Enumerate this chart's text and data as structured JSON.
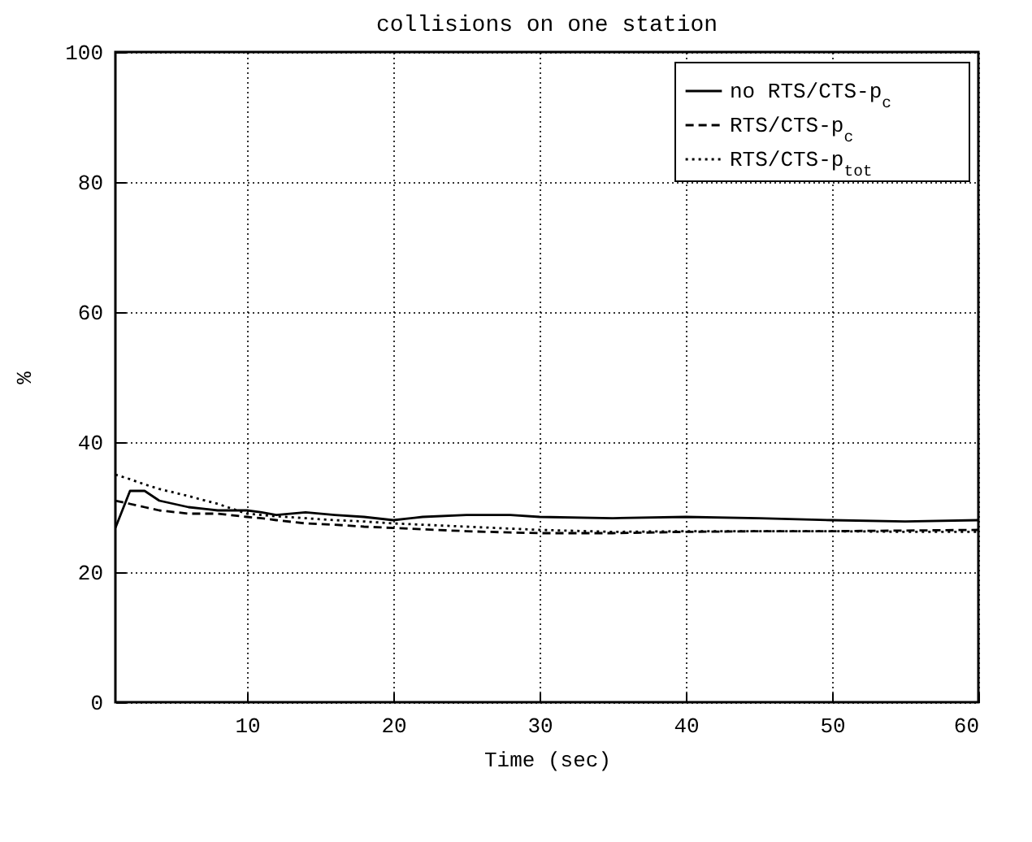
{
  "chart_data": {
    "type": "line",
    "title": "collisions on one station",
    "xlabel": "Time (sec)",
    "ylabel": "%",
    "xlim": [
      1,
      60
    ],
    "xticks": [
      10,
      20,
      30,
      40,
      50,
      60
    ],
    "ylim": [
      0,
      100
    ],
    "yticks": [
      0,
      20,
      40,
      60,
      80,
      100
    ],
    "grid": true,
    "legend": "top right",
    "marker": "none",
    "x": [
      1,
      2,
      3,
      4,
      6,
      8,
      10,
      11,
      12,
      14,
      16,
      18,
      20,
      22,
      25,
      28,
      30,
      35,
      40,
      45,
      50,
      55,
      60
    ],
    "series": [
      {
        "name": "no RTS/CTS-p$_{c}$",
        "color": "#000000",
        "line_style": "solid",
        "values": [
          26.8,
          32.5,
          32.5,
          31,
          30,
          29.5,
          29.5,
          29.2,
          28.8,
          29.2,
          28.8,
          28.5,
          28,
          28.5,
          28.8,
          28.8,
          28.5,
          28.3,
          28.5,
          28.3,
          28,
          27.8,
          28
        ]
      },
      {
        "name": "RTS/CTS-p$_{c}$",
        "color": "#000000",
        "line_style": "dashed",
        "values": [
          31,
          30.5,
          30,
          29.5,
          29,
          29,
          28.5,
          28.3,
          28,
          27.5,
          27.3,
          27,
          26.8,
          26.6,
          26.3,
          26.1,
          26,
          26,
          26.2,
          26.3,
          26.3,
          26.4,
          26.5
        ]
      },
      {
        "name": "RTS/CTS-p$_{tot}$",
        "color": "#000000",
        "line_style": "dotted",
        "values": [
          35,
          34.3,
          33.5,
          32.8,
          31.7,
          30.5,
          29,
          28.8,
          28.6,
          28.3,
          28,
          27.8,
          27.5,
          27.3,
          27,
          26.7,
          26.5,
          26.2,
          26.3,
          26.3,
          26.3,
          26.2,
          26.2
        ]
      }
    ]
  }
}
